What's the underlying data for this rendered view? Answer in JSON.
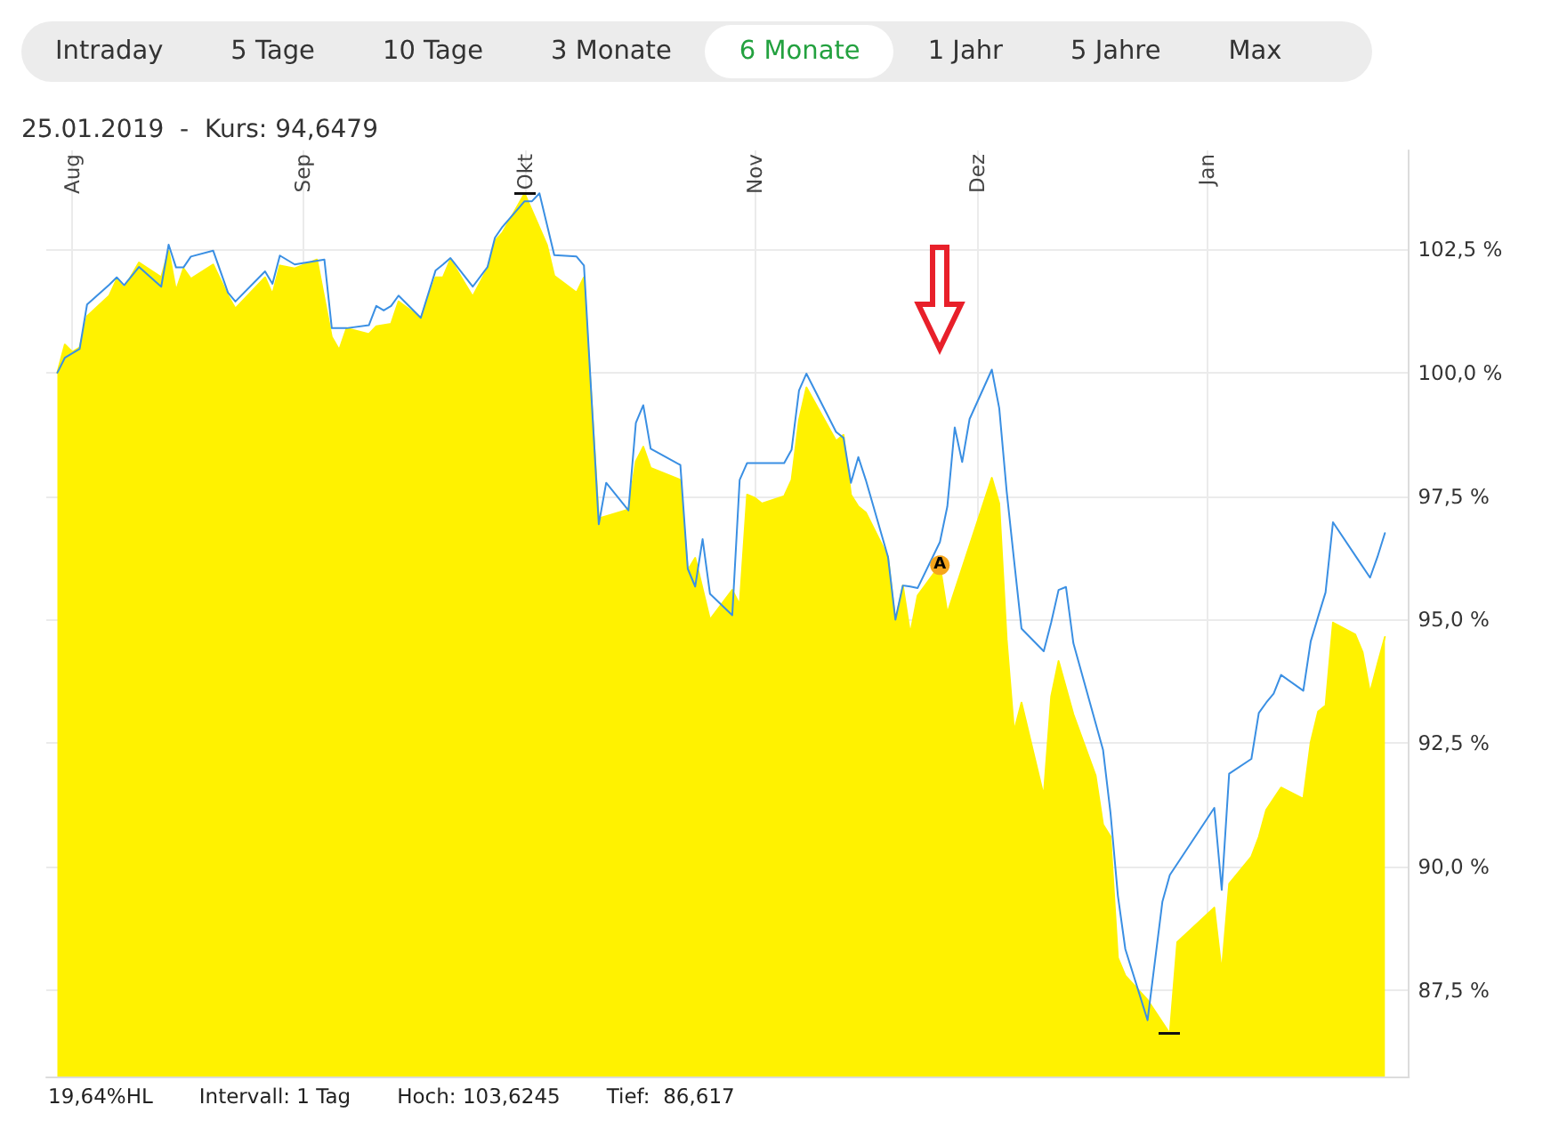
{
  "chart_data": [
    {
      "type": "other",
      "annotations": [
        "Intraday",
        "5 Tage",
        "10 Tage",
        "3 Monate",
        "6 Monate",
        "1 Jahr",
        "5 Jahre",
        "Max"
      ]
    },
    {
      "type": "area",
      "title": "25.01.2019  -  Kurs: 94,6479",
      "xlim": [
        "2018-07-28T12:00",
        "2019-01-28T06:00"
      ],
      "ylim": [
        85.75,
        104.5
      ],
      "xticks": [
        {
          "value": "2018-08-01",
          "label": "Aug"
        },
        {
          "value": "2018-09-01",
          "label": "Sep"
        },
        {
          "value": "2018-10-01",
          "label": "Okt"
        },
        {
          "value": "2018-11-01",
          "label": "Nov"
        },
        {
          "value": "2018-12-01",
          "label": "Dez"
        },
        {
          "value": "2019-01-01",
          "label": "Jan"
        }
      ],
      "yticks": [
        {
          "value": 87.5,
          "label": "87,5 %"
        },
        {
          "value": 90,
          "label": "90,0 %"
        },
        {
          "value": 92.5,
          "label": "92,5 %"
        },
        {
          "value": 95,
          "label": "95,0 %"
        },
        {
          "value": 97.5,
          "label": "97,5 %"
        },
        {
          "value": 100,
          "label": "100,0 %"
        },
        {
          "value": 102.5,
          "label": "102,5 %"
        }
      ],
      "grid": true,
      "series": [
        {
          "type": "area",
          "color": "#fff200",
          "x": [
            "2018-07-30",
            "2018-07-31",
            "2018-08-01",
            "2018-08-02",
            "2018-08-03",
            "2018-08-06",
            "2018-08-07",
            "2018-08-08",
            "2018-08-10",
            "2018-08-13",
            "2018-08-14",
            "2018-08-15",
            "2018-08-16",
            "2018-08-17",
            "2018-08-20",
            "2018-08-22",
            "2018-08-23",
            "2018-08-27",
            "2018-08-28",
            "2018-08-29",
            "2018-08-31",
            "2018-09-03",
            "2018-09-05",
            "2018-09-06",
            "2018-09-07",
            "2018-09-10",
            "2018-09-11",
            "2018-09-13",
            "2018-09-14",
            "2018-09-17",
            "2018-09-19",
            "2018-09-20",
            "2018-09-21",
            "2018-09-24",
            "2018-09-26",
            "2018-09-27",
            "2018-09-28",
            "2018-10-01",
            "2018-10-04",
            "2018-10-05",
            "2018-10-08",
            "2018-10-09",
            "2018-10-11",
            "2018-10-15",
            "2018-10-16",
            "2018-10-17",
            "2018-10-18",
            "2018-10-22",
            "2018-10-23",
            "2018-10-24",
            "2018-10-26",
            "2018-10-29",
            "2018-10-30",
            "2018-10-31",
            "2018-11-01",
            "2018-11-02",
            "2018-11-05",
            "2018-11-06",
            "2018-11-07",
            "2018-11-08",
            "2018-11-12",
            "2018-11-13",
            "2018-11-14",
            "2018-11-15",
            "2018-11-16",
            "2018-11-19",
            "2018-11-20",
            "2018-11-21",
            "2018-11-22",
            "2018-11-23",
            "2018-11-26",
            "2018-11-27",
            "2018-12-03",
            "2018-12-04",
            "2018-12-05",
            "2018-12-06",
            "2018-12-07",
            "2018-12-10",
            "2018-12-11",
            "2018-12-12",
            "2018-12-14",
            "2018-12-17",
            "2018-12-18",
            "2018-12-19",
            "2018-12-20",
            "2018-12-21",
            "2018-12-24",
            "2018-12-27",
            "2018-12-28",
            "2019-01-02",
            "2019-01-03",
            "2019-01-04",
            "2019-01-07",
            "2019-01-08",
            "2019-01-09",
            "2019-01-11",
            "2019-01-14",
            "2019-01-15",
            "2019-01-16",
            "2019-01-17",
            "2019-01-18",
            "2019-01-21",
            "2019-01-22",
            "2019-01-23",
            "2019-01-24",
            "2019-01-25"
          ],
          "values": [
            100.0,
            100.57,
            100.42,
            100.51,
            101.14,
            101.56,
            101.89,
            101.71,
            102.23,
            101.93,
            102.47,
            101.66,
            102.11,
            101.9,
            102.19,
            101.56,
            101.3,
            101.93,
            101.59,
            102.17,
            102.11,
            102.29,
            100.72,
            100.46,
            100.9,
            100.78,
            100.94,
            100.99,
            101.44,
            101.11,
            101.93,
            101.93,
            102.29,
            101.54,
            102.11,
            102.67,
            102.83,
            103.6245,
            102.59,
            101.96,
            101.62,
            101.93,
            97.05,
            97.23,
            98.2,
            98.5,
            98.07,
            97.83,
            96.0,
            96.25,
            95.0,
            95.6,
            95.3,
            97.53,
            97.47,
            97.35,
            97.5,
            97.83,
            99.04,
            99.7,
            98.62,
            98.74,
            97.53,
            97.29,
            97.17,
            96.27,
            94.95,
            95.69,
            94.71,
            95.49,
            96.1,
            95.13,
            97.87,
            97.35,
            94.6,
            92.74,
            93.32,
            91.43,
            93.44,
            94.16,
            93.08,
            91.84,
            90.85,
            90.61,
            88.15,
            87.79,
            87.3,
            86.617,
            88.47,
            89.17,
            87.87,
            89.65,
            90.2,
            90.6,
            91.15,
            91.6,
            91.37,
            92.52,
            93.14,
            93.26,
            94.94,
            94.7,
            94.34,
            93.52,
            94.1,
            94.6479
          ]
        },
        {
          "type": "line",
          "color": "#3a8fe3",
          "x": [
            "2018-07-30",
            "2018-07-31",
            "2018-08-01",
            "2018-08-02",
            "2018-08-03",
            "2018-08-06",
            "2018-08-07",
            "2018-08-08",
            "2018-08-10",
            "2018-08-13",
            "2018-08-14",
            "2018-08-15",
            "2018-08-16",
            "2018-08-17",
            "2018-08-20",
            "2018-08-22",
            "2018-08-23",
            "2018-08-27",
            "2018-08-28",
            "2018-08-29",
            "2018-08-31",
            "2018-09-04",
            "2018-09-05",
            "2018-09-07",
            "2018-09-10",
            "2018-09-11",
            "2018-09-12",
            "2018-09-13",
            "2018-09-14",
            "2018-09-17",
            "2018-09-19",
            "2018-09-20",
            "2018-09-21",
            "2018-09-24",
            "2018-09-26",
            "2018-09-27",
            "2018-09-28",
            "2018-10-01",
            "2018-10-02",
            "2018-10-03",
            "2018-10-05",
            "2018-10-08",
            "2018-10-09",
            "2018-10-11",
            "2018-10-12",
            "2018-10-15",
            "2018-10-16",
            "2018-10-17",
            "2018-10-18",
            "2018-10-22",
            "2018-10-23",
            "2018-10-24",
            "2018-10-25",
            "2018-10-26",
            "2018-10-29",
            "2018-10-30",
            "2018-10-31",
            "2018-11-05",
            "2018-11-06",
            "2018-11-07",
            "2018-11-08",
            "2018-11-12",
            "2018-11-13",
            "2018-11-14",
            "2018-11-15",
            "2018-11-16",
            "2018-11-19",
            "2018-11-20",
            "2018-11-21",
            "2018-11-22",
            "2018-11-23",
            "2018-11-26",
            "2018-11-27",
            "2018-11-28",
            "2018-11-29",
            "2018-11-30",
            "2018-12-03",
            "2018-12-04",
            "2018-12-05",
            "2018-12-06",
            "2018-12-07",
            "2018-12-10",
            "2018-12-11",
            "2018-12-12",
            "2018-12-13",
            "2018-12-14",
            "2018-12-18",
            "2018-12-19",
            "2018-12-20",
            "2018-12-21",
            "2018-12-24",
            "2018-12-26",
            "2018-12-27",
            "2019-01-02",
            "2019-01-03",
            "2019-01-04",
            "2019-01-07",
            "2019-01-08",
            "2019-01-09",
            "2019-01-10",
            "2019-01-11",
            "2019-01-14",
            "2019-01-15",
            "2019-01-16",
            "2019-01-17",
            "2019-01-18",
            "2019-01-23",
            "2019-01-24",
            "2019-01-25"
          ],
          "values": [
            100.0,
            100.3,
            100.39,
            100.48,
            101.38,
            101.78,
            101.93,
            101.77,
            102.14,
            101.74,
            102.59,
            102.13,
            102.13,
            102.35,
            102.47,
            101.62,
            101.44,
            102.05,
            101.8,
            102.37,
            102.19,
            102.29,
            100.9,
            100.9,
            100.96,
            101.35,
            101.26,
            101.35,
            101.56,
            101.11,
            102.07,
            102.19,
            102.32,
            101.74,
            102.14,
            102.73,
            102.95,
            103.47,
            103.47,
            103.63,
            102.38,
            102.35,
            102.17,
            96.93,
            97.77,
            97.21,
            98.98,
            99.34,
            98.46,
            98.13,
            96.03,
            95.67,
            96.63,
            95.52,
            95.09,
            97.83,
            98.17,
            98.17,
            98.44,
            99.64,
            99.98,
            98.8,
            98.68,
            97.77,
            98.29,
            97.83,
            96.27,
            95.0,
            95.69,
            95.67,
            95.64,
            96.57,
            97.29,
            98.89,
            98.19,
            99.06,
            100.06,
            99.28,
            97.6,
            96.2,
            94.82,
            94.36,
            94.94,
            95.6,
            95.66,
            94.52,
            92.36,
            91.09,
            89.41,
            88.33,
            86.89,
            89.29,
            89.83,
            91.19,
            89.53,
            91.88,
            92.18,
            93.11,
            93.32,
            93.5,
            93.88,
            93.56,
            94.56,
            95.06,
            95.55,
            96.97,
            95.85,
            96.27,
            96.75
          ]
        }
      ],
      "annotations": [
        "19,64%HL",
        "Intervall: 1 Tag",
        "Hoch: 103,6245",
        "Tief:  86,617",
        {
          "text": "A",
          "x": "2018-11-26",
          "y": 96.1
        }
      ]
    }
  ]
}
